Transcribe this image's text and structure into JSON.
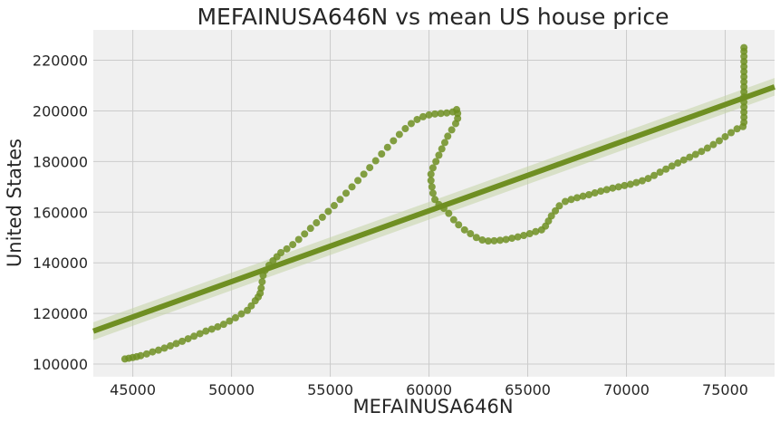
{
  "chart_data": {
    "type": "scatter",
    "title": "MEFAINUSA646N vs mean US house price",
    "xlabel": "MEFAINUSA646N",
    "ylabel": "United States",
    "xlim": [
      43000,
      77500
    ],
    "ylim": [
      95000,
      232000
    ],
    "x_ticks": [
      45000,
      50000,
      55000,
      60000,
      65000,
      70000,
      75000
    ],
    "y_ticks": [
      100000,
      120000,
      140000,
      160000,
      180000,
      200000,
      220000
    ],
    "x_tick_labels": [
      "45000",
      "50000",
      "55000",
      "60000",
      "65000",
      "70000",
      "75000"
    ],
    "y_tick_labels": [
      "100000",
      "120000",
      "140000",
      "160000",
      "180000",
      "200000",
      "220000"
    ],
    "grid": true,
    "colors": {
      "points": "#6f8f22",
      "regression_line": "#6f8f22",
      "confidence_band": "#c5d4a5",
      "plot_background": "#f0f0f0",
      "grid": "#cbcbcb"
    },
    "regression": {
      "points": [
        [
          43000,
          113000
        ],
        [
          77500,
          209500
        ]
      ],
      "ci_halfwidth_at_ends": 3500
    },
    "points": [
      [
        44600,
        102000
      ],
      [
        44800,
        102300
      ],
      [
        45000,
        102600
      ],
      [
        45200,
        102900
      ],
      [
        45400,
        103300
      ],
      [
        45700,
        104000
      ],
      [
        46000,
        104800
      ],
      [
        46300,
        105500
      ],
      [
        46600,
        106300
      ],
      [
        46900,
        107200
      ],
      [
        47200,
        108100
      ],
      [
        47500,
        109000
      ],
      [
        47800,
        110000
      ],
      [
        48100,
        111000
      ],
      [
        48400,
        112000
      ],
      [
        48700,
        113000
      ],
      [
        49000,
        113800
      ],
      [
        49300,
        114700
      ],
      [
        49600,
        115700
      ],
      [
        49900,
        117000
      ],
      [
        50200,
        118300
      ],
      [
        50500,
        119800
      ],
      [
        50800,
        121200
      ],
      [
        51000,
        123000
      ],
      [
        51200,
        125000
      ],
      [
        51350,
        126500
      ],
      [
        51450,
        128000
      ],
      [
        51500,
        130000
      ],
      [
        51550,
        132500
      ],
      [
        51600,
        135000
      ],
      [
        51700,
        137000
      ],
      [
        51900,
        139000
      ],
      [
        52100,
        140800
      ],
      [
        52300,
        142400
      ],
      [
        52500,
        144000
      ],
      [
        52800,
        145500
      ],
      [
        53100,
        147200
      ],
      [
        53400,
        149200
      ],
      [
        53700,
        151400
      ],
      [
        54000,
        153600
      ],
      [
        54300,
        155800
      ],
      [
        54600,
        158000
      ],
      [
        54900,
        160300
      ],
      [
        55200,
        162600
      ],
      [
        55500,
        165000
      ],
      [
        55800,
        167500
      ],
      [
        56100,
        170000
      ],
      [
        56400,
        172500
      ],
      [
        56700,
        175000
      ],
      [
        57000,
        177600
      ],
      [
        57300,
        180300
      ],
      [
        57600,
        183000
      ],
      [
        57900,
        185600
      ],
      [
        58200,
        188200
      ],
      [
        58500,
        190700
      ],
      [
        58800,
        193000
      ],
      [
        59100,
        195000
      ],
      [
        59400,
        196600
      ],
      [
        59700,
        197700
      ],
      [
        60000,
        198400
      ],
      [
        60300,
        198800
      ],
      [
        60600,
        199000
      ],
      [
        60900,
        199200
      ],
      [
        61200,
        199600
      ],
      [
        61400,
        200500
      ],
      [
        61450,
        199000
      ],
      [
        61450,
        197000
      ],
      [
        61350,
        195000
      ],
      [
        61150,
        192500
      ],
      [
        60950,
        190000
      ],
      [
        60800,
        187500
      ],
      [
        60650,
        185000
      ],
      [
        60500,
        182500
      ],
      [
        60350,
        180000
      ],
      [
        60200,
        177500
      ],
      [
        60100,
        175000
      ],
      [
        60100,
        172500
      ],
      [
        60150,
        170000
      ],
      [
        60200,
        167500
      ],
      [
        60300,
        165000
      ],
      [
        60500,
        163000
      ],
      [
        60750,
        161500
      ],
      [
        61000,
        159500
      ],
      [
        61250,
        157000
      ],
      [
        61500,
        155000
      ],
      [
        61800,
        153000
      ],
      [
        62100,
        151500
      ],
      [
        62400,
        150000
      ],
      [
        62700,
        149000
      ],
      [
        63000,
        148600
      ],
      [
        63300,
        148700
      ],
      [
        63600,
        148900
      ],
      [
        63900,
        149200
      ],
      [
        64200,
        149700
      ],
      [
        64500,
        150200
      ],
      [
        64800,
        150800
      ],
      [
        65100,
        151500
      ],
      [
        65400,
        152300
      ],
      [
        65700,
        153000
      ],
      [
        65900,
        154500
      ],
      [
        66050,
        156500
      ],
      [
        66200,
        158500
      ],
      [
        66400,
        160500
      ],
      [
        66600,
        162500
      ],
      [
        66900,
        164200
      ],
      [
        67200,
        165000
      ],
      [
        67500,
        165700
      ],
      [
        67800,
        166300
      ],
      [
        68100,
        166900
      ],
      [
        68400,
        167600
      ],
      [
        68700,
        168300
      ],
      [
        69000,
        168900
      ],
      [
        69300,
        169500
      ],
      [
        69600,
        170000
      ],
      [
        69900,
        170500
      ],
      [
        70200,
        171000
      ],
      [
        70500,
        171700
      ],
      [
        70800,
        172400
      ],
      [
        71100,
        173300
      ],
      [
        71400,
        174500
      ],
      [
        71700,
        175800
      ],
      [
        72000,
        177000
      ],
      [
        72300,
        178200
      ],
      [
        72600,
        179400
      ],
      [
        72900,
        180600
      ],
      [
        73200,
        181700
      ],
      [
        73500,
        182800
      ],
      [
        73800,
        184000
      ],
      [
        74100,
        185300
      ],
      [
        74400,
        186700
      ],
      [
        74700,
        188200
      ],
      [
        75000,
        189800
      ],
      [
        75300,
        191400
      ],
      [
        75600,
        192900
      ],
      [
        75900,
        193800
      ],
      [
        75950,
        195500
      ],
      [
        75950,
        197500
      ],
      [
        75950,
        199500
      ],
      [
        75950,
        201500
      ],
      [
        75950,
        203500
      ],
      [
        75950,
        205500
      ],
      [
        75950,
        207500
      ],
      [
        75950,
        209500
      ],
      [
        75950,
        211500
      ],
      [
        75950,
        213500
      ],
      [
        75950,
        215500
      ],
      [
        75950,
        217500
      ],
      [
        75950,
        219500
      ],
      [
        75950,
        221500
      ],
      [
        75950,
        223500
      ],
      [
        75950,
        225000
      ]
    ]
  }
}
